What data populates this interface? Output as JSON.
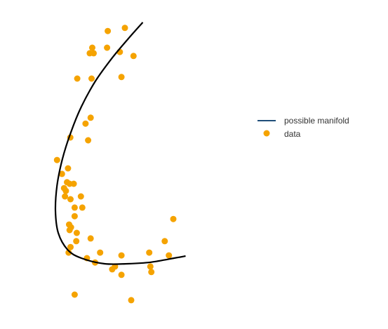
{
  "chart_data": {
    "type": "scatter",
    "title": "",
    "xlabel": "",
    "ylabel": "",
    "axes_visible": false,
    "grid": false,
    "legend_placement": "right",
    "xlim": [
      0,
      10
    ],
    "ylim": [
      0,
      10
    ],
    "series": [
      {
        "name": "possible manifold",
        "kind": "line",
        "color": "#000000",
        "legend_color": "#1f4e79",
        "points": [
          [
            4.65,
            9.73
          ],
          [
            4.0,
            9.18
          ],
          [
            3.3,
            8.55
          ],
          [
            2.6,
            7.82
          ],
          [
            2.0,
            7.0
          ],
          [
            1.55,
            6.18
          ],
          [
            1.18,
            5.3
          ],
          [
            0.95,
            4.45
          ],
          [
            0.88,
            3.64
          ],
          [
            1.0,
            2.91
          ],
          [
            1.41,
            2.36
          ],
          [
            2.0,
            2.09
          ],
          [
            3.0,
            1.91
          ],
          [
            4.0,
            1.91
          ],
          [
            5.0,
            1.96
          ],
          [
            6.0,
            2.09
          ],
          [
            6.5,
            2.16
          ]
        ]
      },
      {
        "name": "data",
        "kind": "scatter",
        "color": "#f5a300",
        "points": [
          [
            3.14,
            9.45
          ],
          [
            3.88,
            9.55
          ],
          [
            2.47,
            8.91
          ],
          [
            3.11,
            8.91
          ],
          [
            2.36,
            8.73
          ],
          [
            2.53,
            8.73
          ],
          [
            3.66,
            8.77
          ],
          [
            4.25,
            8.64
          ],
          [
            1.82,
            7.91
          ],
          [
            2.44,
            7.91
          ],
          [
            3.73,
            7.96
          ],
          [
            2.4,
            6.64
          ],
          [
            2.18,
            6.45
          ],
          [
            1.52,
            6.0
          ],
          [
            2.29,
            5.91
          ],
          [
            0.95,
            5.27
          ],
          [
            1.42,
            5.0
          ],
          [
            1.16,
            4.82
          ],
          [
            1.33,
            4.27
          ],
          [
            1.38,
            4.55
          ],
          [
            1.49,
            4.5
          ],
          [
            1.67,
            4.5
          ],
          [
            1.25,
            4.36
          ],
          [
            1.29,
            4.09
          ],
          [
            1.53,
            4.0
          ],
          [
            1.98,
            4.09
          ],
          [
            1.71,
            3.73
          ],
          [
            2.04,
            3.73
          ],
          [
            1.47,
            3.18
          ],
          [
            1.71,
            3.45
          ],
          [
            1.55,
            3.09
          ],
          [
            1.49,
            3.0
          ],
          [
            1.8,
            2.91
          ],
          [
            1.78,
            2.64
          ],
          [
            2.4,
            2.73
          ],
          [
            1.53,
            2.45
          ],
          [
            1.45,
            2.27
          ],
          [
            2.24,
            2.09
          ],
          [
            2.59,
            1.95
          ],
          [
            2.81,
            2.27
          ],
          [
            3.73,
            2.18
          ],
          [
            3.33,
            1.73
          ],
          [
            3.45,
            1.82
          ],
          [
            3.73,
            1.55
          ],
          [
            4.15,
            0.73
          ],
          [
            1.71,
            0.91
          ],
          [
            4.93,
            2.27
          ],
          [
            5.02,
            1.64
          ],
          [
            4.98,
            1.82
          ],
          [
            5.78,
            2.18
          ],
          [
            5.6,
            2.64
          ],
          [
            5.97,
            3.36
          ]
        ]
      }
    ]
  }
}
